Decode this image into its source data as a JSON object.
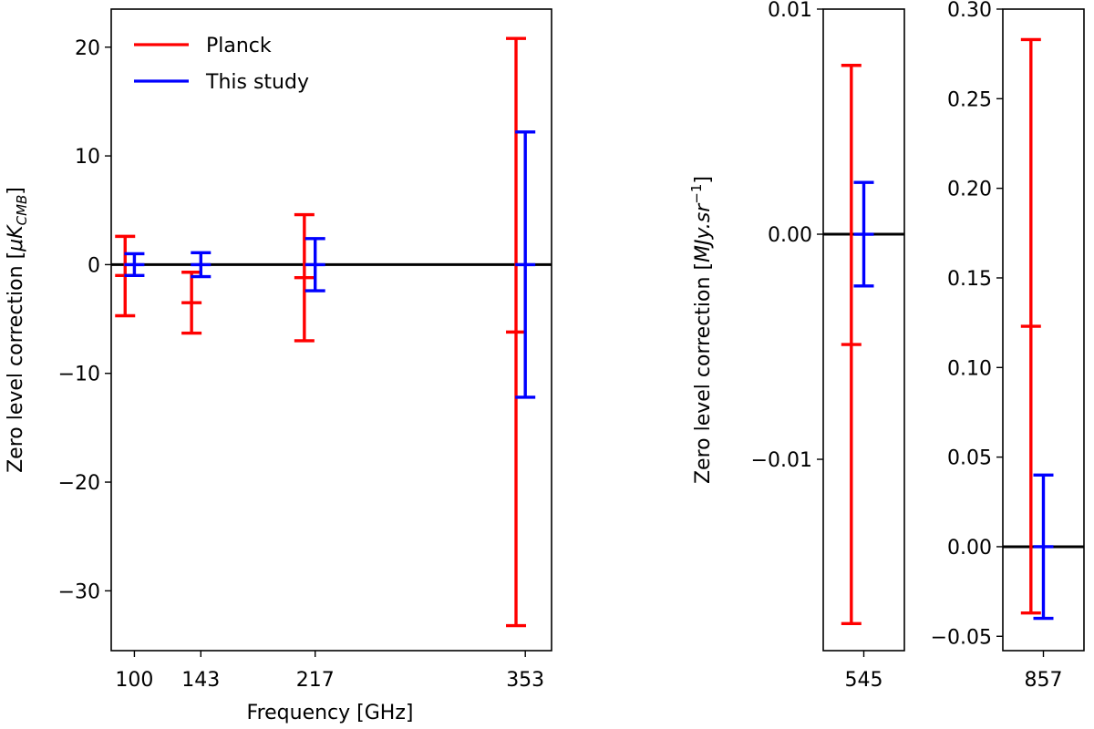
{
  "chart_data": [
    {
      "type": "errorbar",
      "panel": "left",
      "xlabel": "Frequency [GHz]",
      "ylabel": "Zero level correction [",
      "ylabel_math": "μK",
      "ylabel_sub": "CMB",
      "ylabel_end": "]",
      "ylim": [
        -35.5,
        23.5
      ],
      "xlim": [
        85,
        370
      ],
      "yticks": [
        20,
        10,
        0,
        -10,
        -20,
        -30
      ],
      "ytick_labels": [
        "20",
        "10",
        "0",
        "−10",
        "−20",
        "−30"
      ],
      "xticks": [
        100,
        143,
        217,
        353
      ],
      "xtick_labels": [
        "100",
        "143",
        "217",
        "353"
      ],
      "zero_line": 0,
      "legend": {
        "position": "upper-left",
        "entries": [
          "Planck",
          "This study"
        ]
      },
      "series": [
        {
          "name": "Planck",
          "color": "#ff0000",
          "points": [
            {
              "x": 94,
              "y": -1.0,
              "low": -4.7,
              "high": 2.6
            },
            {
              "x": 137,
              "y": -3.5,
              "low": -6.3,
              "high": -0.7
            },
            {
              "x": 210,
              "y": -1.2,
              "low": -7.0,
              "high": 4.6
            },
            {
              "x": 347,
              "y": -6.2,
              "low": -33.2,
              "high": 20.8
            }
          ]
        },
        {
          "name": "This study",
          "color": "#0000ff",
          "points": [
            {
              "x": 100,
              "y": 0.0,
              "low": -1.0,
              "high": 1.0
            },
            {
              "x": 143,
              "y": 0.0,
              "low": -1.1,
              "high": 1.1
            },
            {
              "x": 217,
              "y": 0.0,
              "low": -2.4,
              "high": 2.4
            },
            {
              "x": 353,
              "y": 0.0,
              "low": -12.2,
              "high": 12.2
            }
          ]
        }
      ]
    },
    {
      "type": "errorbar",
      "panel": "middle",
      "xlabel": "",
      "ylabel": "Zero level correction [",
      "ylabel_math": "MJy.sr",
      "ylabel_sup": "−1",
      "ylabel_end": "]",
      "ylim": [
        -0.0185,
        0.01
      ],
      "xlim": [
        532,
        558
      ],
      "yticks": [
        0.01,
        0.0,
        -0.01
      ],
      "ytick_labels": [
        "0.01",
        "0.00",
        "−0.01"
      ],
      "xticks": [
        545
      ],
      "xtick_labels": [
        "545"
      ],
      "zero_line": 0,
      "series": [
        {
          "name": "Planck",
          "color": "#ff0000",
          "points": [
            {
              "x": 541,
              "y": -0.0049,
              "low": -0.0173,
              "high": 0.0075
            }
          ]
        },
        {
          "name": "This study",
          "color": "#0000ff",
          "points": [
            {
              "x": 545,
              "y": 0.0,
              "low": -0.0023,
              "high": 0.0023
            }
          ]
        }
      ]
    },
    {
      "type": "errorbar",
      "panel": "right",
      "xlabel": "",
      "ylabel": "",
      "ylim": [
        -0.058,
        0.3
      ],
      "xlim": [
        844,
        870
      ],
      "yticks": [
        0.3,
        0.25,
        0.2,
        0.15,
        0.1,
        0.05,
        0.0,
        -0.05
      ],
      "ytick_labels": [
        "0.30",
        "0.25",
        "0.20",
        "0.15",
        "0.10",
        "0.05",
        "0.00",
        "−0.05"
      ],
      "xticks": [
        857
      ],
      "xtick_labels": [
        "857"
      ],
      "zero_line": 0,
      "series": [
        {
          "name": "Planck",
          "color": "#ff0000",
          "points": [
            {
              "x": 853,
              "y": 0.123,
              "low": -0.037,
              "high": 0.283
            }
          ]
        },
        {
          "name": "This study",
          "color": "#0000ff",
          "points": [
            {
              "x": 857,
              "y": 0.0,
              "low": -0.04,
              "high": 0.04
            }
          ]
        }
      ]
    }
  ]
}
